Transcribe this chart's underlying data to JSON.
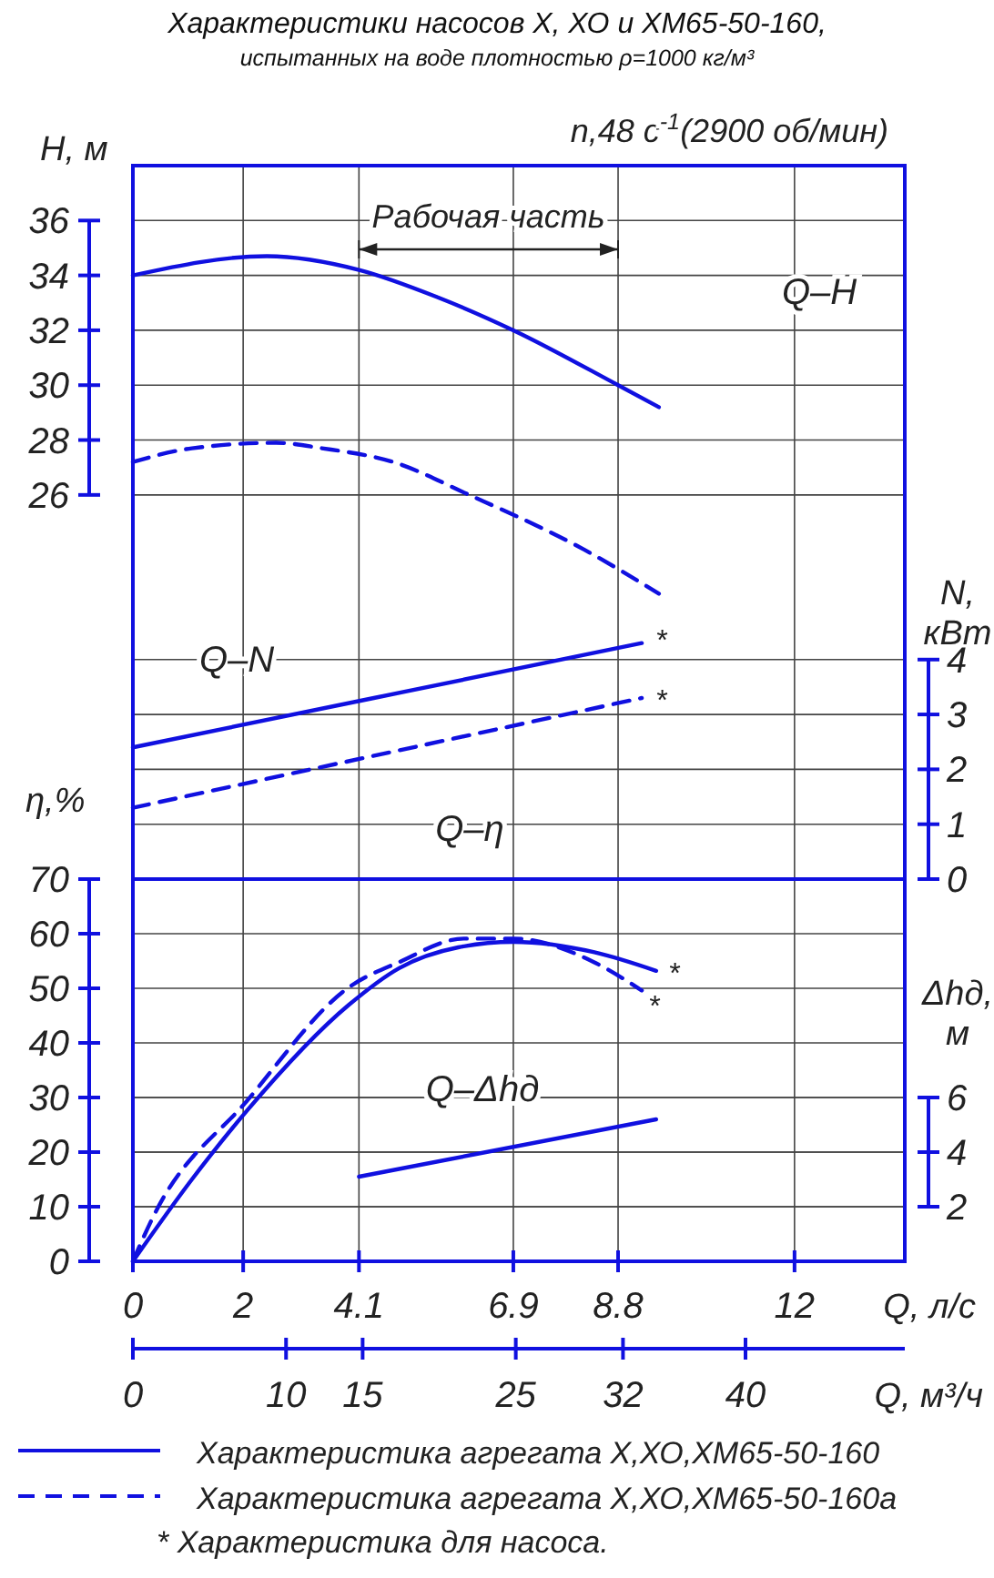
{
  "chart_data": [
    {
      "type": "line",
      "title": "Характеристики насосов Х, ХО и ХМ65-50-160,",
      "subtitle": "испытанных на воде плотностью ρ=1000 кг/м³",
      "ylabel": "H, м",
      "y2label": "N, кВт",
      "xlim": [
        0,
        14
      ],
      "xticks": [
        0,
        2,
        4.1,
        6.9,
        8.8,
        12
      ],
      "ylim": [
        12,
        38
      ],
      "yticks": [
        26,
        28,
        30,
        32,
        34,
        36
      ],
      "y2lim": [
        0,
        13
      ],
      "y2ticks": [
        0,
        1,
        2,
        3,
        4
      ],
      "grid": true,
      "tick_labels": "y",
      "series": [
        {
          "color": "#1010e0",
          "line_style": "solid",
          "x": [
            0,
            2.43,
            4.1,
            5.53,
            6.9,
            8.8,
            9.54
          ],
          "values": [
            34,
            34.7,
            34.2,
            33.2,
            32,
            30,
            29.2
          ]
        },
        {
          "color": "#1010e0",
          "line_style": "dashed",
          "x": [
            0,
            1.07,
            2.6,
            3.43,
            4.72,
            6.1,
            8.19,
            9.54
          ],
          "values": [
            27.2,
            27.7,
            27.9,
            27.7,
            27.2,
            26.0,
            24.0,
            22.4
          ]
        },
        {
          "color": "#1010e0",
          "line_style": "solid",
          "axis": "y2",
          "x": [
            0,
            4.37,
            9.23
          ],
          "values": [
            2.4,
            3.3,
            4.3
          ]
        },
        {
          "color": "#1010e0",
          "line_style": "dashed",
          "axis": "y2",
          "x": [
            0,
            9.23
          ],
          "values": [
            1.3,
            3.3
          ]
        }
      ],
      "annotations": [
        "n,48 с$^{-1}$(2900 об/мин)",
        "Рабочая часть",
        "Q–H",
        "Q–N",
        "*",
        "*"
      ]
    },
    {
      "type": "line",
      "xlabel": "Q, л/с",
      "x2label": "Q, м³/ч",
      "ylabel": "η,%",
      "y2label": "Δhд, м",
      "xlim": [
        0,
        14
      ],
      "xticks": [
        0,
        2,
        4.1,
        6.9,
        8.8,
        12
      ],
      "x2lim": [
        0,
        50.4
      ],
      "x2ticks": [
        0,
        10,
        15,
        25,
        32,
        40
      ],
      "ylim": [
        0,
        70
      ],
      "yticks": [
        0,
        10,
        20,
        30,
        40,
        50,
        60,
        70
      ],
      "y2lim": [
        0,
        14
      ],
      "y2ticks": [
        2,
        4,
        6
      ],
      "grid": true,
      "legend": "bottom",
      "series": [
        {
          "name": "Характеристика агрегата Х,ХО,ХМ65-50-160",
          "color": "#1010e0",
          "line_style": "solid",
          "x": [
            0,
            1.07,
            2.07,
            3.92,
            4.83,
            5.9,
            6.9,
            8.37,
            9.49
          ],
          "values": [
            0,
            15,
            27.6,
            47,
            53.7,
            57.5,
            58.5,
            56.6,
            53.2
          ]
        },
        {
          "name": "Характеристика агрегата Х,ХО,ХМ65-50-160а",
          "color": "#1010e0",
          "line_style": "dashed",
          "x": [
            0,
            0.36,
            2.07,
            3.92,
            4.83,
            6.0,
            6.9,
            8.36,
            9.23
          ],
          "values": [
            0,
            8,
            29.4,
            50.2,
            54.8,
            59.1,
            59.1,
            54.8,
            49.6
          ]
        },
        {
          "color": "#1010e0",
          "line_style": "solid",
          "axis": "y2",
          "x": [
            4.1,
            9.49
          ],
          "values": [
            3.1,
            5.2
          ]
        }
      ],
      "annotations": [
        "Q–η",
        "Q–Δhд",
        "*",
        "*",
        "* Характеристика для насоса."
      ]
    }
  ]
}
